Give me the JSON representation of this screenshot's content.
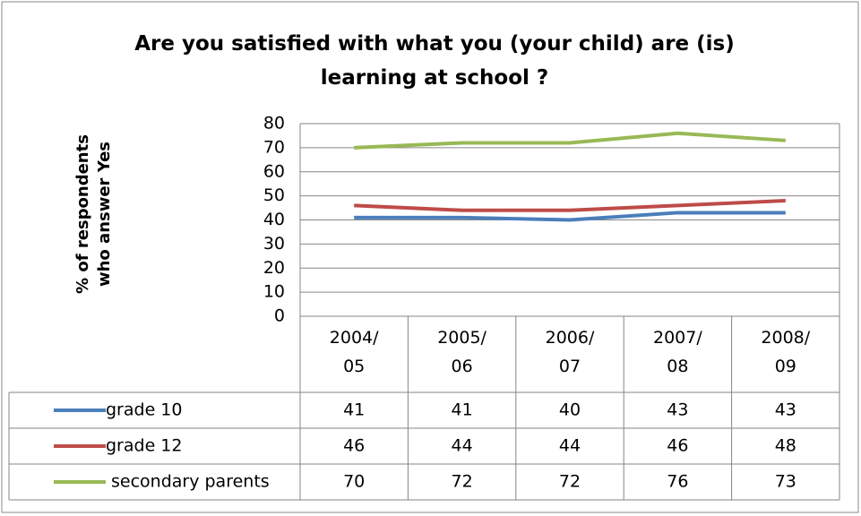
{
  "chart_data": {
    "type": "line",
    "title": "Are you satisfied with what you (your child) are (is) learning at school ?",
    "y_label": "% of respondents who answer Yes",
    "categories": [
      "2004/05",
      "2005/06",
      "2006/07",
      "2007/08",
      "2008/09"
    ],
    "series": [
      {
        "name": "grade 10",
        "color": "#4a7ebb",
        "values": [
          41,
          41,
          40,
          43,
          43
        ]
      },
      {
        "name": "grade 12",
        "color": "#be4b48",
        "values": [
          46,
          44,
          44,
          46,
          48
        ]
      },
      {
        "name": "secondary parents",
        "color": "#98b954",
        "values": [
          70,
          72,
          72,
          76,
          73
        ]
      }
    ],
    "ylim": [
      0,
      80
    ],
    "yticks": [
      0,
      10,
      20,
      30,
      40,
      50,
      60,
      70,
      80
    ],
    "grid": true,
    "data_table": true
  }
}
